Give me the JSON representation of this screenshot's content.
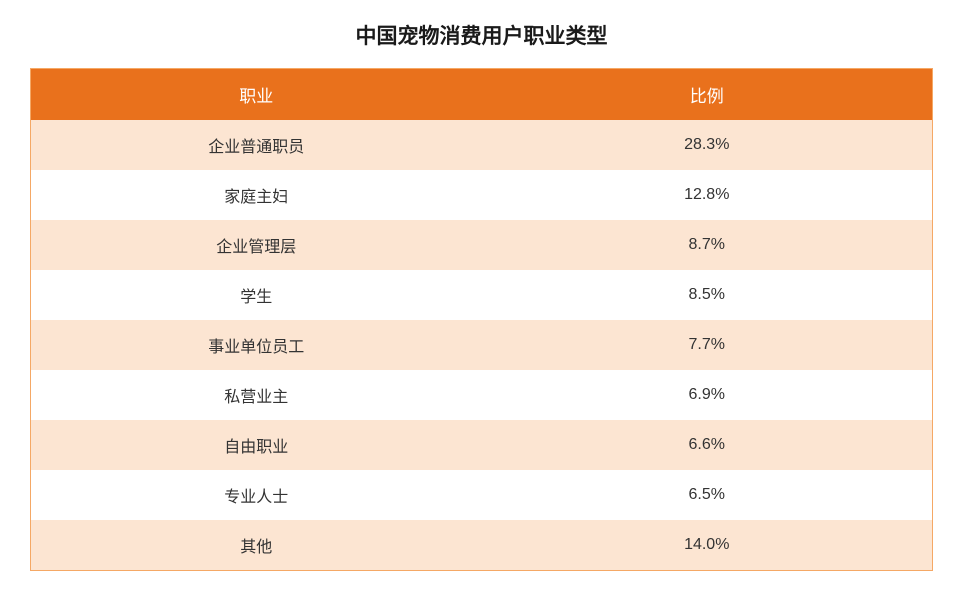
{
  "title": "中国宠物消费用户职业类型",
  "table": {
    "columns": [
      "职业",
      "比例"
    ],
    "rows": [
      [
        "企业普通职员",
        "28.3%"
      ],
      [
        "家庭主妇",
        "12.8%"
      ],
      [
        "企业管理层",
        "8.7%"
      ],
      [
        "学生",
        "8.5%"
      ],
      [
        "事业单位员工",
        "7.7%"
      ],
      [
        "私营业主",
        "6.9%"
      ],
      [
        "自由职业",
        "6.6%"
      ],
      [
        "专业人士",
        "6.5%"
      ],
      [
        "其他",
        "14.0%"
      ]
    ],
    "header_bg": "#e9711c",
    "header_text_color": "#ffffff",
    "odd_row_bg": "#fce5d2",
    "even_row_bg": "#ffffff",
    "border_color": "#f5a865",
    "title_fontsize": 21,
    "header_fontsize": 17,
    "cell_fontsize": 16,
    "cell_text_color": "#333333"
  }
}
